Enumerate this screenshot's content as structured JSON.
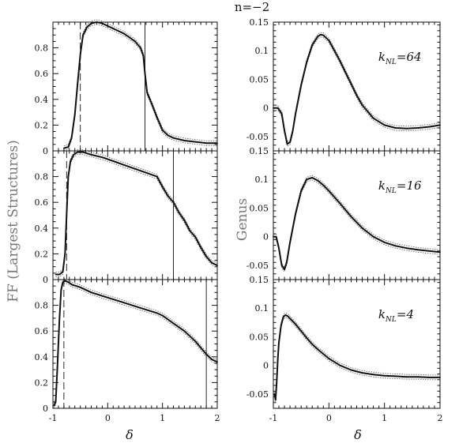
{
  "title": "n=−2",
  "left_ylabel": "FF (Largest Structures)",
  "right_ylabel": "Genus",
  "xlabel": "δ",
  "knl_prefix": "k",
  "knl_subscript": "NL",
  "chart_data": [
    {
      "type": "line",
      "panel": "left-top",
      "ylabel": "FF (Largest Structures)",
      "xlabel": "",
      "xlim": [
        -1,
        2
      ],
      "ylim": [
        0,
        1
      ],
      "xticks": [
        -1,
        0,
        1,
        2
      ],
      "yticks": [
        0,
        0.2,
        0.4,
        0.6,
        0.8
      ],
      "ytick_labels": [
        "0",
        "0.2",
        "0.4",
        "0.6",
        "0.8"
      ],
      "vlines": [
        {
          "x": -0.5,
          "style": "dashed"
        },
        {
          "x": 0.68,
          "style": "solid"
        }
      ],
      "series": [
        {
          "x": [
            -0.8,
            -0.72,
            -0.66,
            -0.6,
            -0.55,
            -0.5,
            -0.45,
            -0.38,
            -0.3,
            -0.2,
            -0.1,
            0.0,
            0.1,
            0.2,
            0.3,
            0.4,
            0.5,
            0.6,
            0.65,
            0.68,
            0.72,
            0.8,
            0.9,
            1.0,
            1.1,
            1.2,
            1.4,
            1.6,
            1.8,
            2.0
          ],
          "y": [
            0.02,
            0.03,
            0.1,
            0.28,
            0.52,
            0.75,
            0.9,
            0.96,
            0.99,
            1.0,
            0.99,
            0.97,
            0.95,
            0.93,
            0.91,
            0.88,
            0.85,
            0.8,
            0.74,
            0.6,
            0.45,
            0.37,
            0.26,
            0.16,
            0.12,
            0.1,
            0.08,
            0.07,
            0.06,
            0.06
          ]
        }
      ]
    },
    {
      "type": "line",
      "panel": "left-middle",
      "ylabel": "FF (Largest Structures)",
      "xlabel": "",
      "xlim": [
        -1,
        2
      ],
      "ylim": [
        0,
        1
      ],
      "xticks": [
        -1,
        0,
        1,
        2
      ],
      "yticks": [
        0,
        0.2,
        0.4,
        0.6,
        0.8
      ],
      "ytick_labels": [
        "0",
        "0.2",
        "0.4",
        "0.6",
        "0.8"
      ],
      "vlines": [
        {
          "x": -0.75,
          "style": "dashed"
        },
        {
          "x": 1.2,
          "style": "solid"
        }
      ],
      "series": [
        {
          "x": [
            -0.95,
            -0.88,
            -0.82,
            -0.78,
            -0.75,
            -0.72,
            -0.68,
            -0.62,
            -0.55,
            -0.45,
            -0.3,
            -0.1,
            0.1,
            0.3,
            0.5,
            0.7,
            0.9,
            1.0,
            1.1,
            1.2,
            1.3,
            1.4,
            1.5,
            1.6,
            1.7,
            1.8,
            1.9,
            2.0
          ],
          "y": [
            0.04,
            0.04,
            0.06,
            0.2,
            0.5,
            0.8,
            0.92,
            0.97,
            0.99,
            0.99,
            0.97,
            0.95,
            0.92,
            0.89,
            0.86,
            0.83,
            0.8,
            0.72,
            0.65,
            0.6,
            0.52,
            0.46,
            0.38,
            0.33,
            0.25,
            0.18,
            0.13,
            0.11
          ]
        }
      ]
    },
    {
      "type": "line",
      "panel": "left-bottom",
      "ylabel": "FF (Largest Structures)",
      "xlabel": "δ",
      "xlim": [
        -1,
        2
      ],
      "ylim": [
        0,
        1
      ],
      "xticks": [
        -1,
        0,
        1,
        2
      ],
      "xtick_labels": [
        "-1",
        "0",
        "1",
        "2"
      ],
      "yticks": [
        0,
        0.2,
        0.4,
        0.6,
        0.8
      ],
      "ytick_labels": [
        "0",
        "0.2",
        "0.4",
        "0.6",
        "0.8"
      ],
      "vlines": [
        {
          "x": -0.8,
          "style": "dashed"
        },
        {
          "x": 1.8,
          "style": "solid"
        }
      ],
      "series": [
        {
          "x": [
            -0.98,
            -0.95,
            -0.92,
            -0.88,
            -0.85,
            -0.82,
            -0.78,
            -0.72,
            -0.65,
            -0.5,
            -0.3,
            0.0,
            0.3,
            0.6,
            0.9,
            1.0,
            1.2,
            1.4,
            1.6,
            1.8,
            1.9,
            2.0
          ],
          "y": [
            0.02,
            0.05,
            0.3,
            0.7,
            0.92,
            0.98,
            0.99,
            0.98,
            0.96,
            0.94,
            0.9,
            0.86,
            0.82,
            0.78,
            0.74,
            0.72,
            0.66,
            0.6,
            0.52,
            0.42,
            0.38,
            0.36
          ]
        }
      ]
    },
    {
      "type": "line",
      "panel": "right-top",
      "ylabel": "Genus",
      "xlabel": "",
      "xlim": [
        -1,
        2
      ],
      "ylim": [
        -0.075,
        0.15
      ],
      "xticks": [
        -1,
        0,
        1,
        2
      ],
      "yticks": [
        -0.05,
        0,
        0.05,
        0.1,
        0.15
      ],
      "ytick_labels": [
        "-0.05",
        "0",
        "0.05",
        "0.1",
        "0.15"
      ],
      "annotation": "k_NL=64",
      "series": [
        {
          "x": [
            -1.0,
            -0.92,
            -0.85,
            -0.8,
            -0.75,
            -0.7,
            -0.65,
            -0.6,
            -0.5,
            -0.4,
            -0.3,
            -0.2,
            -0.15,
            -0.1,
            0.0,
            0.1,
            0.2,
            0.3,
            0.4,
            0.5,
            0.6,
            0.8,
            1.0,
            1.2,
            1.4,
            1.6,
            1.8,
            2.0
          ],
          "y": [
            0.0,
            0.0,
            -0.01,
            -0.04,
            -0.063,
            -0.06,
            -0.04,
            -0.01,
            0.04,
            0.08,
            0.11,
            0.125,
            0.128,
            0.127,
            0.118,
            0.1,
            0.082,
            0.062,
            0.042,
            0.022,
            0.005,
            -0.018,
            -0.03,
            -0.035,
            -0.036,
            -0.035,
            -0.033,
            -0.03
          ]
        }
      ]
    },
    {
      "type": "line",
      "panel": "right-middle",
      "ylabel": "Genus",
      "xlabel": "",
      "xlim": [
        -1,
        2
      ],
      "ylim": [
        -0.075,
        0.15
      ],
      "xticks": [
        -1,
        0,
        1,
        2
      ],
      "yticks": [
        -0.05,
        0,
        0.05,
        0.1,
        0.15
      ],
      "ytick_labels": [
        "-0.05",
        "0",
        "0.05",
        "0.1",
        "0.15"
      ],
      "annotation": "k_NL=16",
      "series": [
        {
          "x": [
            -1.0,
            -0.95,
            -0.9,
            -0.85,
            -0.8,
            -0.76,
            -0.7,
            -0.6,
            -0.5,
            -0.4,
            -0.3,
            -0.2,
            -0.1,
            0.0,
            0.2,
            0.4,
            0.6,
            0.8,
            1.0,
            1.2,
            1.4,
            1.6,
            1.8,
            2.0
          ],
          "y": [
            0.0,
            0.0,
            -0.02,
            -0.05,
            -0.057,
            -0.045,
            -0.01,
            0.04,
            0.08,
            0.1,
            0.103,
            0.098,
            0.09,
            0.08,
            0.058,
            0.035,
            0.015,
            0.0,
            -0.01,
            -0.016,
            -0.02,
            -0.023,
            -0.025,
            -0.027
          ]
        }
      ]
    },
    {
      "type": "line",
      "panel": "right-bottom",
      "ylabel": "Genus",
      "xlabel": "δ",
      "xlim": [
        -1,
        2
      ],
      "ylim": [
        -0.075,
        0.15
      ],
      "xticks": [
        -1,
        0,
        1,
        2
      ],
      "xtick_labels": [
        "-1",
        "0",
        "1",
        "2"
      ],
      "yticks": [
        -0.05,
        0,
        0.05,
        0.1,
        0.15
      ],
      "ytick_labels": [
        "-0.05",
        "0",
        "0.05",
        "0.1",
        "0.15"
      ],
      "annotation": "k_NL=4",
      "series": [
        {
          "x": [
            -0.98,
            -0.96,
            -0.94,
            -0.92,
            -0.9,
            -0.86,
            -0.82,
            -0.78,
            -0.74,
            -0.7,
            -0.6,
            -0.5,
            -0.4,
            -0.3,
            -0.2,
            0.0,
            0.2,
            0.4,
            0.6,
            0.8,
            1.0,
            1.2,
            1.4,
            1.6,
            1.8,
            2.0
          ],
          "y": [
            -0.05,
            -0.06,
            -0.03,
            0.01,
            0.04,
            0.07,
            0.085,
            0.088,
            0.086,
            0.082,
            0.072,
            0.06,
            0.048,
            0.037,
            0.028,
            0.012,
            0.0,
            -0.008,
            -0.013,
            -0.016,
            -0.018,
            -0.019,
            -0.02,
            -0.02,
            -0.021,
            -0.021
          ]
        }
      ]
    }
  ]
}
